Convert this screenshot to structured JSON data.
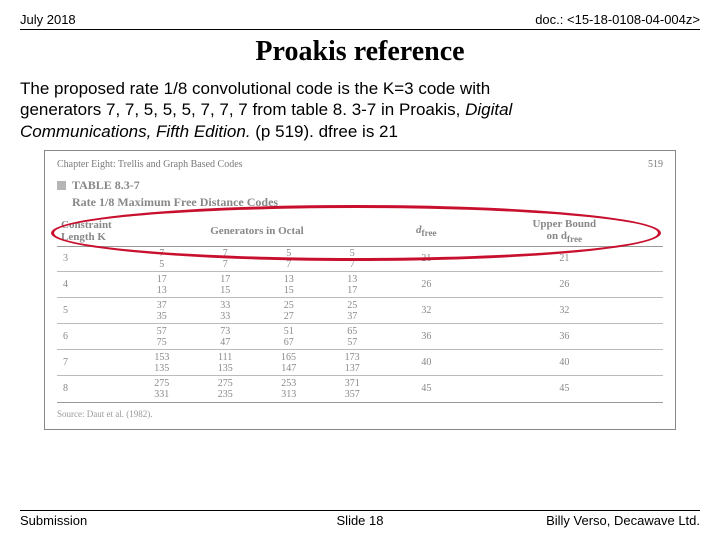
{
  "header": {
    "date": "July 2018",
    "doc": "doc.: <15-18-0108-04-004z>"
  },
  "title": "Proakis reference",
  "body": {
    "line1": "The proposed rate 1/8 convolutional code is the K=3 code with",
    "line2a": "generators 7, 7, 5, 5, 5, 7, 7, 7 from table 8. 3-7 in Proakis, ",
    "line2b": "Digital",
    "line3a": "Communications, Fifth Edition.",
    "line3b": " (p 519). dfree is 21"
  },
  "figure": {
    "chapter": "Chapter Eight: Trellis and Graph Based Codes",
    "page": "519",
    "table_label": "TABLE 8.3-7",
    "table_title": "Rate 1/8 Maximum Free Distance Codes",
    "col_k_a": "Constraint",
    "col_k_b": "Length K",
    "col_gen": "Generators in Octal",
    "col_dfree": "d",
    "col_dfree_sub": "free",
    "col_ub_a": "Upper Bound",
    "col_ub_b": "on d",
    "source": "Source: Daut et al. (1982).",
    "circle_color": "#c8102e",
    "rows": [
      {
        "k": "3",
        "g": [
          "7",
          "7",
          "5",
          "5",
          "5",
          "7",
          "7",
          "7"
        ],
        "d": "21",
        "ub": "21"
      },
      {
        "k": "4",
        "g": [
          "17",
          "17",
          "13",
          "13",
          "13",
          "15",
          "15",
          "17"
        ],
        "d": "26",
        "ub": "26"
      },
      {
        "k": "5",
        "g": [
          "37",
          "33",
          "25",
          "25",
          "35",
          "33",
          "27",
          "37"
        ],
        "d": "32",
        "ub": "32"
      },
      {
        "k": "6",
        "g": [
          "57",
          "73",
          "51",
          "65",
          "75",
          "47",
          "67",
          "57"
        ],
        "d": "36",
        "ub": "36"
      },
      {
        "k": "7",
        "g": [
          "153",
          "111",
          "165",
          "173",
          "135",
          "135",
          "147",
          "137"
        ],
        "d": "40",
        "ub": "40"
      },
      {
        "k": "8",
        "g": [
          "275",
          "275",
          "253",
          "371",
          "331",
          "235",
          "313",
          "357"
        ],
        "d": "45",
        "ub": "45"
      }
    ]
  },
  "footer": {
    "left": "Submission",
    "center": "Slide 18",
    "right": "Billy Verso,  Decawave Ltd."
  }
}
